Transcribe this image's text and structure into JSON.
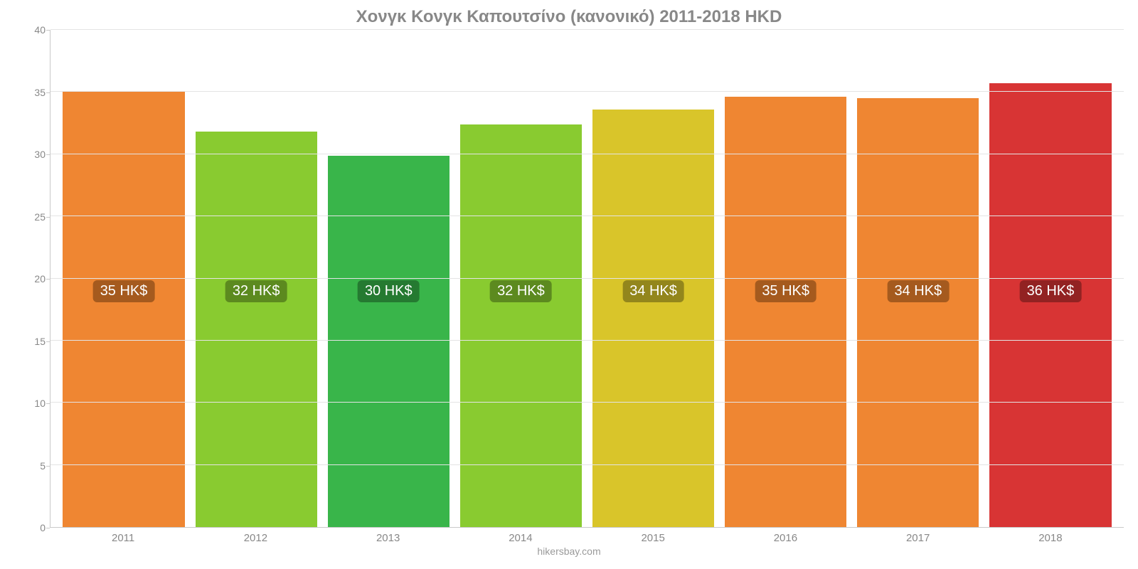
{
  "chart": {
    "type": "bar",
    "title": "Χονγκ Κονγκ Καπουτσίνο (κανονικό) 2011-2018 HKD",
    "title_fontsize": 24,
    "title_color": "#888888",
    "background_color": "#ffffff",
    "grid_color": "#e4e4e4",
    "axis_line_color": "#c9c9c9",
    "tick_label_color": "#888888",
    "tick_fontsize": 14,
    "xlabel_fontsize": 15,
    "bar_width_pct": 92,
    "ylim": [
      0,
      40
    ],
    "ytick_step": 5,
    "yticks": [
      0,
      5,
      10,
      15,
      20,
      25,
      30,
      35,
      40
    ],
    "categories": [
      "2011",
      "2012",
      "2013",
      "2014",
      "2015",
      "2016",
      "2017",
      "2018"
    ],
    "values": [
      35.0,
      31.8,
      29.9,
      32.4,
      33.6,
      34.6,
      34.5,
      35.7
    ],
    "bar_colors": [
      "#ef8632",
      "#89cb30",
      "#39b54a",
      "#89cb30",
      "#d9c52a",
      "#ef8632",
      "#ef8632",
      "#d83434"
    ],
    "value_labels": [
      "35 HK$",
      "32 HK$",
      "30 HK$",
      "32 HK$",
      "34 HK$",
      "35 HK$",
      "34 HK$",
      "36 HK$"
    ],
    "value_label_bg": [
      "#a55a1e",
      "#5c8a1f",
      "#257a31",
      "#5c8a1f",
      "#93861c",
      "#a55a1e",
      "#a55a1e",
      "#922222"
    ],
    "value_label_fontsize": 20,
    "value_label_color": "#ffffff",
    "value_label_y_center": 19,
    "footer": "hikersbay.com",
    "footer_color": "#9a9a9a",
    "footer_fontsize": 14
  }
}
